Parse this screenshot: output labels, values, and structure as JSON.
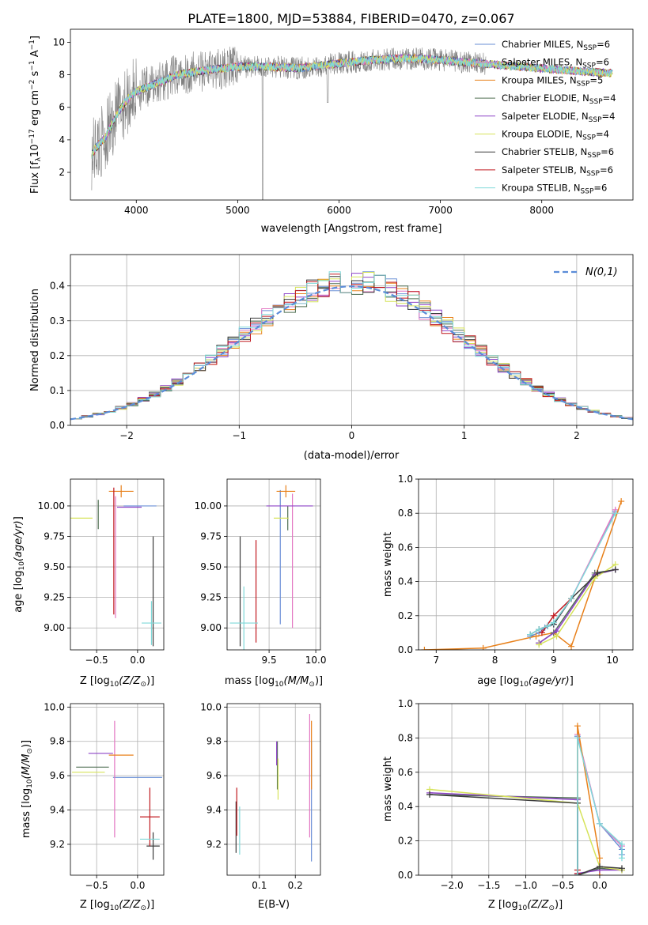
{
  "figure_title": "PLATE=1800, MJD=53884, FIBERID=0470, z=0.067",
  "models": [
    {
      "name": "Chabrier MILES",
      "nssp": "6",
      "color": "#6a8fd6"
    },
    {
      "name": "Salpeter MILES",
      "nssp": "6",
      "color": "#e377c2"
    },
    {
      "name": "Kroupa MILES",
      "nssp": "5",
      "color": "#e8801a"
    },
    {
      "name": "Chabrier ELODIE",
      "nssp": "4",
      "color": "#4f6f52"
    },
    {
      "name": "Salpeter ELODIE",
      "nssp": "4",
      "color": "#8e44c7"
    },
    {
      "name": "Kroupa ELODIE",
      "nssp": "4",
      "color": "#d6e35a"
    },
    {
      "name": "Chabrier STELIB",
      "nssp": "6",
      "color": "#3b3b3b"
    },
    {
      "name": "Salpeter STELIB",
      "nssp": "6",
      "color": "#c0181e"
    },
    {
      "name": "Kroupa STELIB",
      "nssp": "6",
      "color": "#7fd9d9"
    }
  ],
  "chart_data": [
    {
      "id": "spectrum",
      "type": "line",
      "xlabel": "wavelength [Angstrom, rest frame]",
      "ylabel": "Flux [f",
      "xlim": [
        3350,
        8900
      ],
      "ylim": [
        0.3,
        10.8
      ],
      "xticks": [
        "4000",
        "5000",
        "6000",
        "7000",
        "8000"
      ],
      "yticks": [
        "2",
        "4",
        "6",
        "8",
        "10"
      ],
      "data_color": "#808080",
      "model_curve": {
        "x": [
          3550,
          3600,
          3700,
          3800,
          3900,
          4000,
          4100,
          4200,
          4300,
          4400,
          4500,
          4700,
          5000,
          5300,
          5600,
          6000,
          6300,
          6600,
          6800,
          7000,
          7200,
          7400,
          7600,
          7800,
          8000,
          8200,
          8400,
          8700
        ],
        "y": [
          3.0,
          3.5,
          4.2,
          5.5,
          6.4,
          7.0,
          7.2,
          7.5,
          7.7,
          8.0,
          8.1,
          8.3,
          8.5,
          8.5,
          8.4,
          8.7,
          8.9,
          9.0,
          9.0,
          8.9,
          8.8,
          8.7,
          8.6,
          8.5,
          8.4,
          8.3,
          8.2,
          8.1
        ]
      },
      "grid": false,
      "legend": "upper-right"
    },
    {
      "id": "residuals",
      "type": "histogram",
      "xlabel": "(data-model)/error",
      "ylabel": "Normed distribution",
      "xlim": [
        -2.5,
        2.5
      ],
      "ylim": [
        0,
        0.49
      ],
      "xticks": [
        "-2",
        "-1",
        "0",
        "1",
        "2"
      ],
      "yticks": [
        "0.0",
        "0.1",
        "0.2",
        "0.3",
        "0.4"
      ],
      "bin_width": 0.1,
      "reference_label": "N(0,1)",
      "reference_color": "#5b8cd8",
      "grid": true,
      "legend": "upper-right"
    },
    {
      "id": "age_vs_Z",
      "type": "errorbar",
      "xlabel": "Z [log",
      "ylabel": "age  [log",
      "xlim": [
        -0.82,
        0.32
      ],
      "ylim": [
        8.82,
        10.22
      ],
      "xticks": [
        "-0.5",
        "0.0"
      ],
      "yticks": [
        "9.00",
        "9.25",
        "9.50",
        "9.75",
        "10.00"
      ],
      "points": [
        {
          "m": 0,
          "x": 0.03,
          "y": 10.0,
          "ex": 0.2,
          "ey": 0.0
        },
        {
          "m": 1,
          "x": -0.27,
          "y": 9.58,
          "ex": 0.0,
          "ey": 0.5
        },
        {
          "m": 2,
          "x": -0.2,
          "y": 10.12,
          "ex": 0.15,
          "ey": 0.05
        },
        {
          "m": 3,
          "x": -0.48,
          "y": 9.93,
          "ex": 0.0,
          "ey": 0.12
        },
        {
          "m": 4,
          "x": -0.1,
          "y": 9.99,
          "ex": 0.15,
          "ey": 0.0
        },
        {
          "m": 5,
          "x": -0.7,
          "y": 9.9,
          "ex": 0.15,
          "ey": 0.0
        },
        {
          "m": 6,
          "x": 0.19,
          "y": 9.3,
          "ex": 0.0,
          "ey": 0.45
        },
        {
          "m": 7,
          "x": -0.29,
          "y": 9.63,
          "ex": 0.0,
          "ey": 0.52
        },
        {
          "m": 8,
          "x": 0.17,
          "y": 9.04,
          "ex": 0.12,
          "ey": 0.18
        }
      ]
    },
    {
      "id": "age_vs_mass",
      "type": "errorbar",
      "xlabel": "mass [log",
      "ylabel": "",
      "xlim": [
        9.05,
        10.05
      ],
      "ylim": [
        8.82,
        10.22
      ],
      "xticks": [
        "9.5",
        "10.0"
      ],
      "yticks": [
        "9.00",
        "9.25",
        "9.50",
        "9.75",
        "10.00"
      ],
      "points": [
        {
          "m": 0,
          "x": 9.62,
          "y": 9.58,
          "ex": 0.0,
          "ey": 0.55
        },
        {
          "m": 1,
          "x": 9.75,
          "y": 9.55,
          "ex": 0.0,
          "ey": 0.55
        },
        {
          "m": 2,
          "x": 9.68,
          "y": 10.12,
          "ex": 0.1,
          "ey": 0.05
        },
        {
          "m": 3,
          "x": 9.7,
          "y": 9.9,
          "ex": 0.0,
          "ey": 0.1
        },
        {
          "m": 4,
          "x": 9.72,
          "y": 10.0,
          "ex": 0.25,
          "ey": 0.0
        },
        {
          "m": 5,
          "x": 9.63,
          "y": 9.9,
          "ex": 0.08,
          "ey": 0.0
        },
        {
          "m": 6,
          "x": 9.19,
          "y": 9.3,
          "ex": 0.0,
          "ey": 0.45
        },
        {
          "m": 7,
          "x": 9.36,
          "y": 9.3,
          "ex": 0.0,
          "ey": 0.42
        },
        {
          "m": 8,
          "x": 9.23,
          "y": 9.04,
          "ex": 0.15,
          "ey": 0.3
        }
      ]
    },
    {
      "id": "weight_vs_age",
      "type": "line",
      "xlabel": "age  [log",
      "ylabel": "mass weight",
      "xlim": [
        6.7,
        10.35
      ],
      "ylim": [
        0,
        1.0
      ],
      "xticks": [
        "7",
        "8",
        "9",
        "10"
      ],
      "yticks": [
        "0.0",
        "0.2",
        "0.4",
        "0.6",
        "0.8",
        "1.0"
      ],
      "series": [
        {
          "m": 0,
          "x": [
            8.6,
            8.75,
            8.85,
            9.0,
            9.3,
            10.05
          ],
          "y": [
            0.08,
            0.1,
            0.13,
            0.15,
            0.3,
            0.81
          ]
        },
        {
          "m": 1,
          "x": [
            8.6,
            8.75,
            8.9,
            9.0,
            9.3,
            10.05
          ],
          "y": [
            0.09,
            0.12,
            0.14,
            0.16,
            0.3,
            0.82
          ]
        },
        {
          "m": 2,
          "x": [
            6.8,
            7.8,
            8.7,
            9.0,
            9.3,
            10.15
          ],
          "y": [
            0.0,
            0.01,
            0.08,
            0.1,
            0.02,
            0.87
          ]
        },
        {
          "m": 3,
          "x": [
            8.75,
            9.0,
            9.7,
            10.05
          ],
          "y": [
            0.04,
            0.1,
            0.45,
            0.47
          ]
        },
        {
          "m": 4,
          "x": [
            8.75,
            9.05,
            9.7,
            10.05
          ],
          "y": [
            0.04,
            0.11,
            0.44,
            0.47
          ]
        },
        {
          "m": 5,
          "x": [
            8.75,
            9.05,
            9.7,
            10.05
          ],
          "y": [
            0.03,
            0.08,
            0.42,
            0.5
          ]
        },
        {
          "m": 6,
          "x": [
            8.6,
            8.75,
            8.9,
            9.0,
            9.3,
            9.75,
            10.05
          ],
          "y": [
            0.09,
            0.12,
            0.14,
            0.15,
            0.3,
            0.45,
            0.47
          ]
        },
        {
          "m": 7,
          "x": [
            8.8,
            9.0,
            9.3
          ],
          "y": [
            0.1,
            0.2,
            0.3
          ]
        },
        {
          "m": 8,
          "x": [
            8.6,
            8.75,
            8.9,
            9.0,
            9.3,
            10.05
          ],
          "y": [
            0.09,
            0.12,
            0.14,
            0.16,
            0.3,
            0.8
          ]
        }
      ]
    },
    {
      "id": "mass_vs_Z",
      "type": "errorbar",
      "xlabel": "Z [log",
      "ylabel": "mass [log",
      "xlim": [
        -0.82,
        0.32
      ],
      "ylim": [
        9.02,
        10.02
      ],
      "xticks": [
        "-0.5",
        "0.0"
      ],
      "yticks": [
        "9.2",
        "9.4",
        "9.6",
        "9.8",
        "10.0"
      ],
      "points": [
        {
          "m": 0,
          "x": 0.0,
          "y": 9.59,
          "ex": 0.3,
          "ey": 0.0
        },
        {
          "m": 1,
          "x": -0.28,
          "y": 9.58,
          "ex": 0.0,
          "ey": 0.34
        },
        {
          "m": 2,
          "x": -0.2,
          "y": 9.72,
          "ex": 0.15,
          "ey": 0.0
        },
        {
          "m": 3,
          "x": -0.55,
          "y": 9.65,
          "ex": 0.2,
          "ey": 0.0
        },
        {
          "m": 4,
          "x": -0.45,
          "y": 9.73,
          "ex": 0.15,
          "ey": 0.0
        },
        {
          "m": 5,
          "x": -0.6,
          "y": 9.62,
          "ex": 0.2,
          "ey": 0.0
        },
        {
          "m": 6,
          "x": 0.19,
          "y": 9.19,
          "ex": 0.08,
          "ey": 0.08
        },
        {
          "m": 7,
          "x": 0.15,
          "y": 9.36,
          "ex": 0.12,
          "ey": 0.17
        },
        {
          "m": 8,
          "x": 0.15,
          "y": 9.23,
          "ex": 0.12,
          "ey": 0.0
        }
      ]
    },
    {
      "id": "mass_vs_ebv",
      "type": "errorbar",
      "xlabel": "E(B-V)",
      "ylabel": "",
      "xlim": [
        0.01,
        0.27
      ],
      "ylim": [
        9.02,
        10.02
      ],
      "xticks": [
        "0.1",
        "0.2"
      ],
      "yticks": [
        "9.2",
        "9.4",
        "9.6",
        "9.8",
        "10.0"
      ],
      "points": [
        {
          "m": 0,
          "x": 0.245,
          "y": 9.45,
          "ex": 0.0,
          "ey": 0.35
        },
        {
          "m": 1,
          "x": 0.24,
          "y": 9.6,
          "ex": 0.0,
          "ey": 0.36
        },
        {
          "m": 2,
          "x": 0.245,
          "y": 9.72,
          "ex": 0.0,
          "ey": 0.2
        },
        {
          "m": 3,
          "x": 0.15,
          "y": 9.66,
          "ex": 0.0,
          "ey": 0.14
        },
        {
          "m": 4,
          "x": 0.148,
          "y": 9.73,
          "ex": 0.0,
          "ey": 0.07
        },
        {
          "m": 5,
          "x": 0.152,
          "y": 9.58,
          "ex": 0.0,
          "ey": 0.12
        },
        {
          "m": 6,
          "x": 0.035,
          "y": 9.3,
          "ex": 0.0,
          "ey": 0.15
        },
        {
          "m": 7,
          "x": 0.037,
          "y": 9.39,
          "ex": 0.0,
          "ey": 0.14
        },
        {
          "m": 8,
          "x": 0.045,
          "y": 9.28,
          "ex": 0.0,
          "ey": 0.14
        }
      ]
    },
    {
      "id": "weight_vs_Z",
      "type": "line",
      "xlabel": "Z [log",
      "ylabel": "mass weight",
      "xlim": [
        -2.45,
        0.45
      ],
      "ylim": [
        0,
        1.0
      ],
      "xticks": [
        "-2.0",
        "-1.5",
        "-1.0",
        "-0.5",
        "0.0"
      ],
      "yticks": [
        "0.0",
        "0.2",
        "0.4",
        "0.6",
        "0.8",
        "1.0"
      ],
      "series": [
        {
          "m": 0,
          "x": [
            -0.3,
            -0.3,
            0.0,
            0.3,
            0.3
          ],
          "y": [
            0.0,
            0.81,
            0.3,
            0.15,
            0.12
          ]
        },
        {
          "m": 1,
          "x": [
            -0.3,
            -0.3,
            0.0,
            0.3
          ],
          "y": [
            0.0,
            0.82,
            0.3,
            0.17
          ]
        },
        {
          "m": 2,
          "x": [
            -0.3,
            -0.3,
            0.0,
            0.0
          ],
          "y": [
            0.0,
            0.87,
            0.1,
            0.0
          ]
        },
        {
          "m": 3,
          "x": [
            -2.3,
            -0.3,
            -0.3,
            0.0,
            0.3
          ],
          "y": [
            0.47,
            0.45,
            0.0,
            0.04,
            0.03
          ]
        },
        {
          "m": 4,
          "x": [
            -2.3,
            -0.3,
            -0.3,
            0.0,
            0.3
          ],
          "y": [
            0.48,
            0.44,
            0.01,
            0.03,
            0.03
          ]
        },
        {
          "m": 5,
          "x": [
            -2.3,
            -0.3,
            0.0,
            0.3
          ],
          "y": [
            0.5,
            0.42,
            0.05,
            0.03
          ]
        },
        {
          "m": 6,
          "x": [
            -2.3,
            -0.3,
            -0.3,
            0.0,
            0.3
          ],
          "y": [
            0.47,
            0.42,
            0.0,
            0.05,
            0.04
          ]
        },
        {
          "m": 7,
          "x": [
            -0.3,
            -0.3
          ],
          "y": [
            0.01,
            0.03
          ]
        },
        {
          "m": 8,
          "x": [
            -0.3,
            -0.3,
            0.0,
            0.3,
            0.3
          ],
          "y": [
            0.0,
            0.8,
            0.3,
            0.18,
            0.1
          ]
        }
      ]
    }
  ]
}
